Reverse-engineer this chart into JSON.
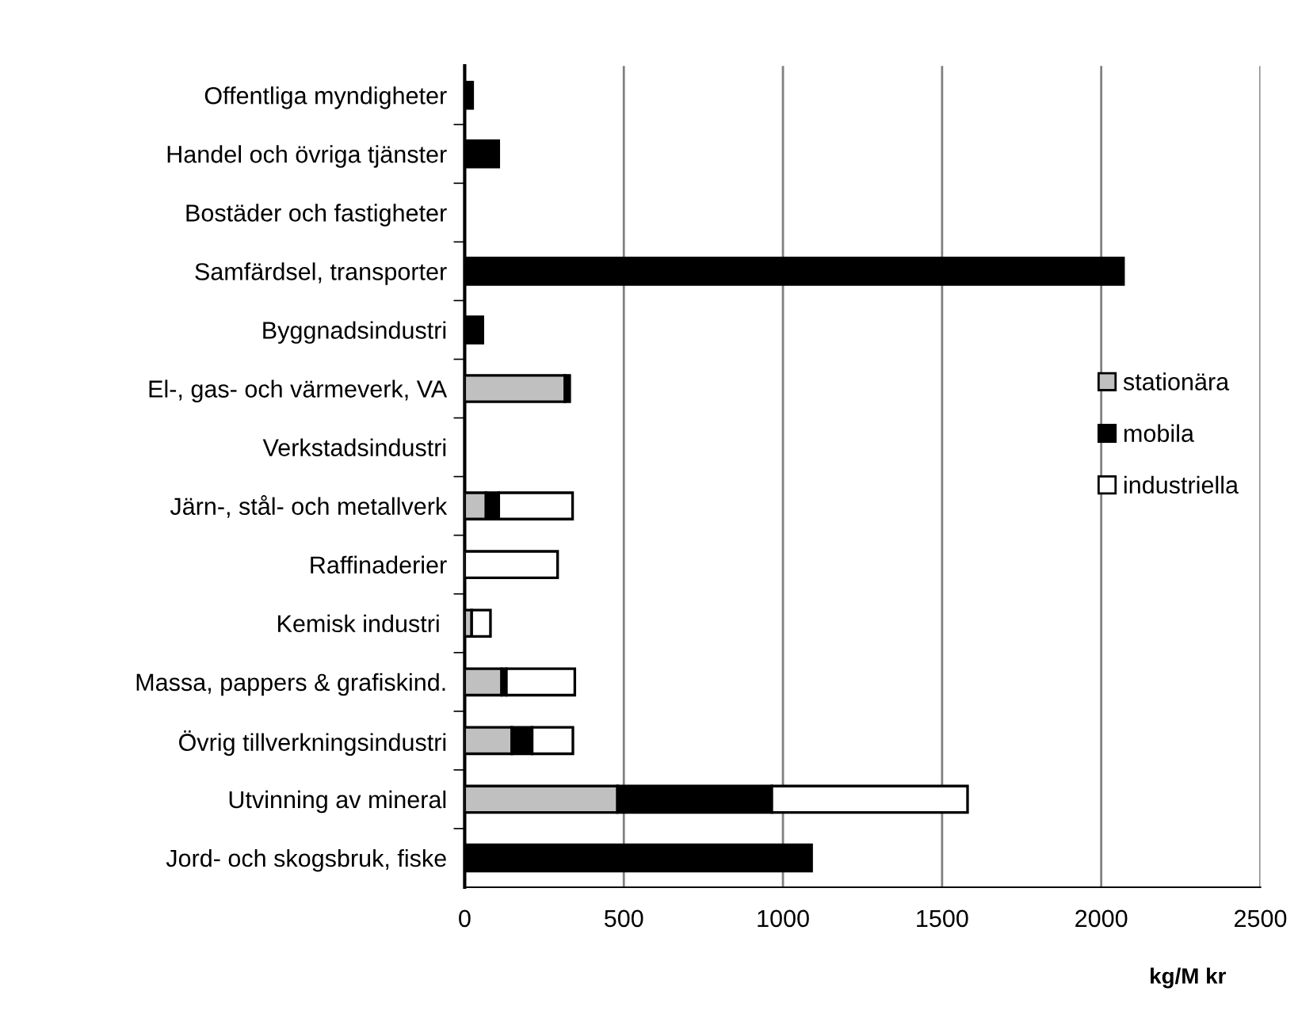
{
  "chart_data": {
    "type": "bar",
    "orientation": "horizontal",
    "stacked": true,
    "categories": [
      "Offentliga myndigheter",
      "Handel och övriga tjänster",
      "Bostäder och fastigheter",
      "Samfärdsel, transporter",
      "Byggnadsindustri",
      "El-, gas- och värmeverk, VA",
      "Verkstadsindustri",
      "Järn-, stål- och metallverk",
      "Raffinaderier",
      "Kemisk industri ",
      "Massa, pappers & grafiskind.",
      "Övrig tillverkningsindustri",
      "Utvinning av mineral",
      "Jord- och skogsbruk, fiske"
    ],
    "series": [
      {
        "name": "stationära",
        "color": "#c0c0c0",
        "values": [
          null,
          null,
          null,
          null,
          null,
          315,
          null,
          67,
          null,
          22,
          116,
          148,
          480,
          null
        ]
      },
      {
        "name": "mobila",
        "color": "#000000",
        "values": [
          25,
          107,
          null,
          2070,
          57,
          15,
          null,
          40,
          null,
          null,
          15,
          64,
          485,
          1090
        ]
      },
      {
        "name": "industriella",
        "color": "#ffffff",
        "values": [
          null,
          null,
          null,
          null,
          null,
          null,
          null,
          232,
          292,
          59,
          215,
          128,
          615,
          null
        ]
      }
    ],
    "xlabel": "kg/M kr",
    "xlim": [
      0,
      2500
    ],
    "xticks": [
      0,
      500,
      1000,
      1500,
      2000,
      2500
    ],
    "grid": "x",
    "legend": "right"
  }
}
